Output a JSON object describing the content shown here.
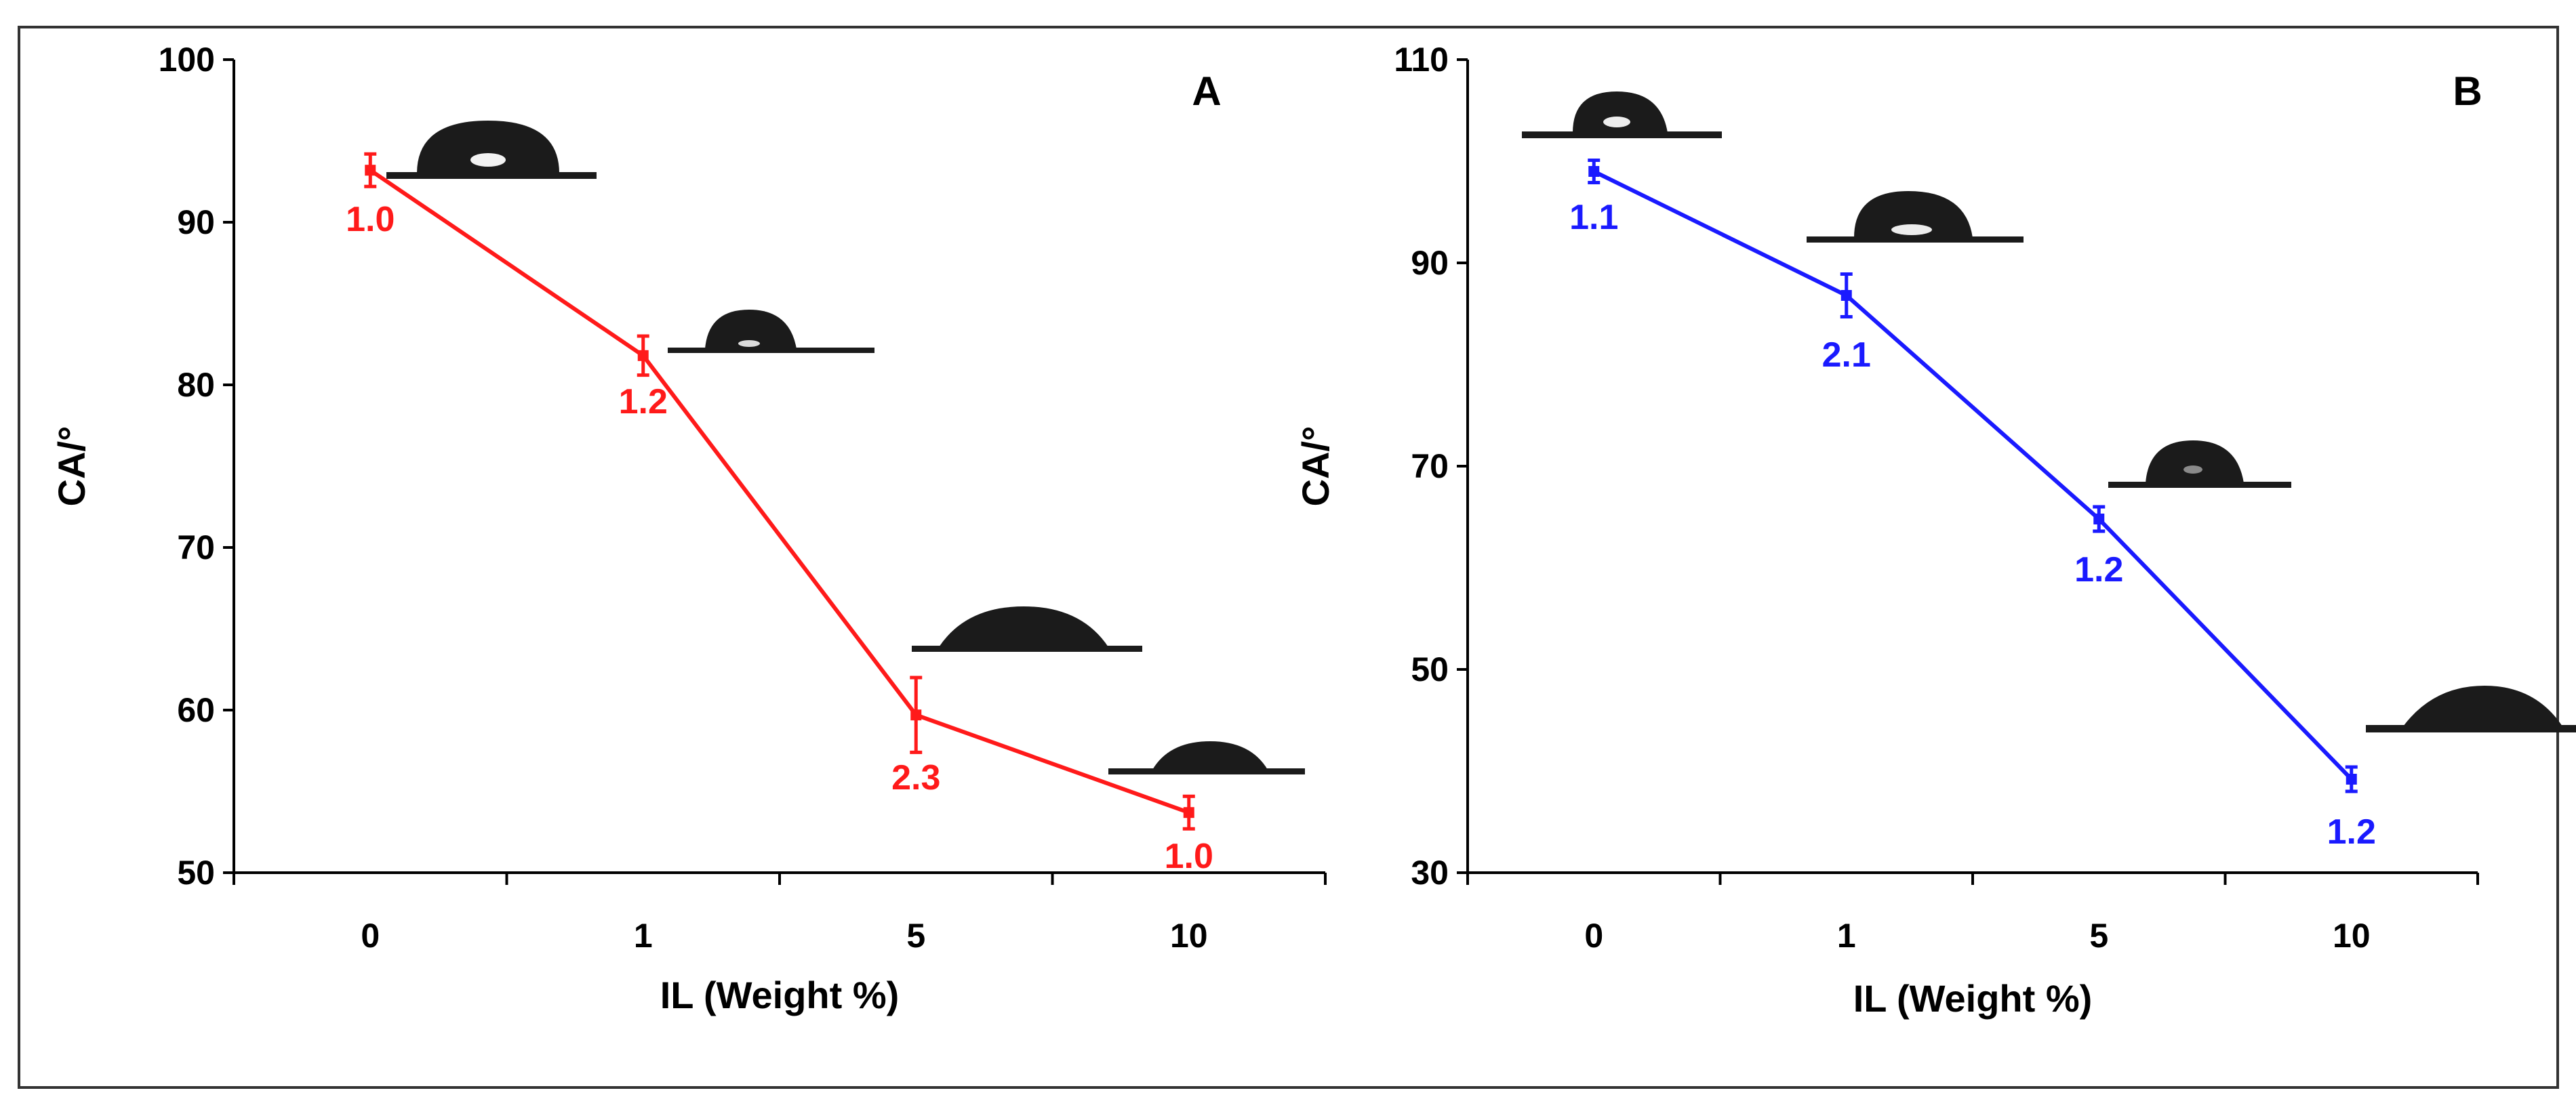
{
  "chart_data": [
    {
      "type": "line",
      "panel_label": "A",
      "categories": [
        "0",
        "1",
        "5",
        "10"
      ],
      "values": [
        93.2,
        81.8,
        59.7,
        53.7
      ],
      "errors": [
        1.0,
        1.2,
        2.3,
        1.0
      ],
      "point_labels": [
        "1.0",
        "1.2",
        "2.3",
        "1.0"
      ],
      "color": "#ff1a1a",
      "xlabel": "IL (Weight %)",
      "ylabel": "CA/°",
      "ylim": [
        50,
        100
      ],
      "yticks": [
        "50",
        "60",
        "70",
        "80",
        "90",
        "100"
      ],
      "legend": "none"
    },
    {
      "type": "line",
      "panel_label": "B",
      "categories": [
        "0",
        "1",
        "5",
        "10"
      ],
      "values": [
        99.0,
        86.8,
        64.8,
        39.2
      ],
      "errors": [
        1.1,
        2.1,
        1.2,
        1.2
      ],
      "point_labels": [
        "1.1",
        "2.1",
        "1.2",
        "1.2"
      ],
      "color": "#1a1aff",
      "xlabel": "IL (Weight %)",
      "ylabel": "CA/°",
      "ylim": [
        30,
        110
      ],
      "yticks": [
        "30",
        "50",
        "70",
        "90",
        "110"
      ],
      "legend": "none"
    }
  ]
}
